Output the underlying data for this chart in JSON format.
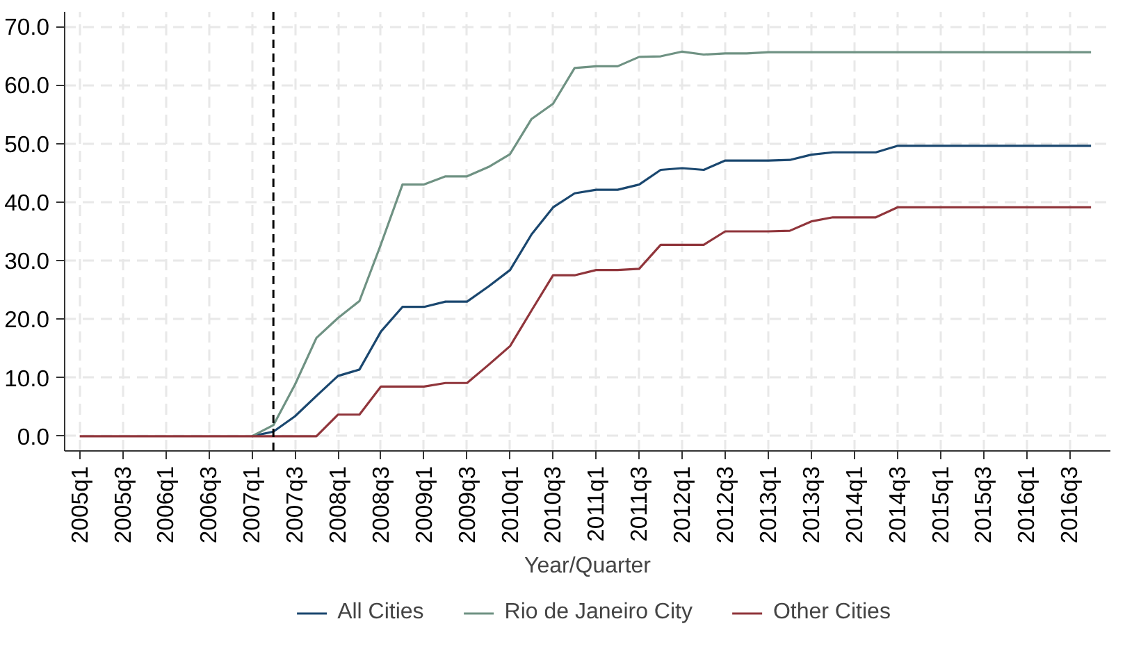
{
  "chart_data": {
    "type": "line",
    "xlabel": "Year/Quarter",
    "categories": [
      "2005q1",
      null,
      "2005q3",
      null,
      "2006q1",
      null,
      "2006q3",
      null,
      "2007q1",
      null,
      "2007q3",
      null,
      "2008q1",
      null,
      "2008q3",
      null,
      "2009q1",
      null,
      "2009q3",
      null,
      "2010q1",
      null,
      "2010q3",
      null,
      "2011q1",
      null,
      "2011q3",
      null,
      "2012q1",
      null,
      "2012q3",
      null,
      "2013q1",
      null,
      "2013q3",
      null,
      "2014q1",
      null,
      "2014q3",
      null,
      "2015q1",
      null,
      "2015q3",
      null,
      "2016q1",
      null,
      "2016q3",
      null
    ],
    "series": [
      {
        "name": "All Cities",
        "color": "#1a476f",
        "values": [
          null,
          null,
          null,
          null,
          null,
          null,
          null,
          null,
          0,
          0.8,
          3.4,
          6.9,
          10.3,
          11.4,
          17.9,
          22.1,
          22.1,
          23.0,
          23.0,
          25.6,
          28.4,
          34.5,
          39.1,
          41.5,
          42.1,
          42.1,
          43.0,
          45.5,
          45.8,
          45.5,
          47.1,
          47.1,
          47.1,
          47.2,
          48.1,
          48.5,
          48.5,
          48.5,
          49.6,
          49.6,
          49.6,
          49.6,
          49.6,
          49.6,
          49.6,
          49.6,
          49.6,
          49.6
        ]
      },
      {
        "name": "Rio de Janeiro City",
        "color": "#6f9283",
        "values": [
          null,
          null,
          null,
          null,
          null,
          null,
          null,
          null,
          0,
          1.9,
          8.8,
          16.8,
          20.2,
          23.1,
          32.8,
          43.0,
          43.0,
          44.4,
          44.4,
          46.0,
          48.2,
          54.2,
          56.8,
          62.9,
          63.2,
          63.2,
          64.8,
          64.9,
          65.7,
          65.2,
          65.4,
          65.4,
          65.6,
          65.6,
          65.6,
          65.6,
          65.6,
          65.6,
          65.6,
          65.6,
          65.6,
          65.6,
          65.6,
          65.6,
          65.6,
          65.6,
          65.6,
          65.6
        ]
      },
      {
        "name": "Other Cities",
        "color": "#90353b",
        "values": [
          0,
          0,
          0,
          0,
          0,
          0,
          0,
          0,
          0,
          0,
          0,
          0,
          3.7,
          3.7,
          8.5,
          8.5,
          8.5,
          9.1,
          9.1,
          12.2,
          15.4,
          21.5,
          27.5,
          27.5,
          28.4,
          28.4,
          28.6,
          32.7,
          32.7,
          32.7,
          35.0,
          35.0,
          35.0,
          35.1,
          36.7,
          37.4,
          37.4,
          37.4,
          39.1,
          39.1,
          39.1,
          39.1,
          39.1,
          39.1,
          39.1,
          39.1,
          39.1,
          39.1
        ]
      }
    ],
    "ylim": [
      -2.5,
      72.5
    ],
    "yticks": [
      {
        "value": 0,
        "label": "0.0"
      },
      {
        "value": 10,
        "label": "10.0"
      },
      {
        "value": 20,
        "label": "20.0"
      },
      {
        "value": 30,
        "label": "30.0"
      },
      {
        "value": 40,
        "label": "40.0"
      },
      {
        "value": 50,
        "label": "50.0"
      },
      {
        "value": 60,
        "label": "60.0"
      },
      {
        "value": 70,
        "label": "70.0"
      }
    ],
    "grid": true,
    "legend": "bottom",
    "line_style": "solid",
    "marker": "none"
  }
}
